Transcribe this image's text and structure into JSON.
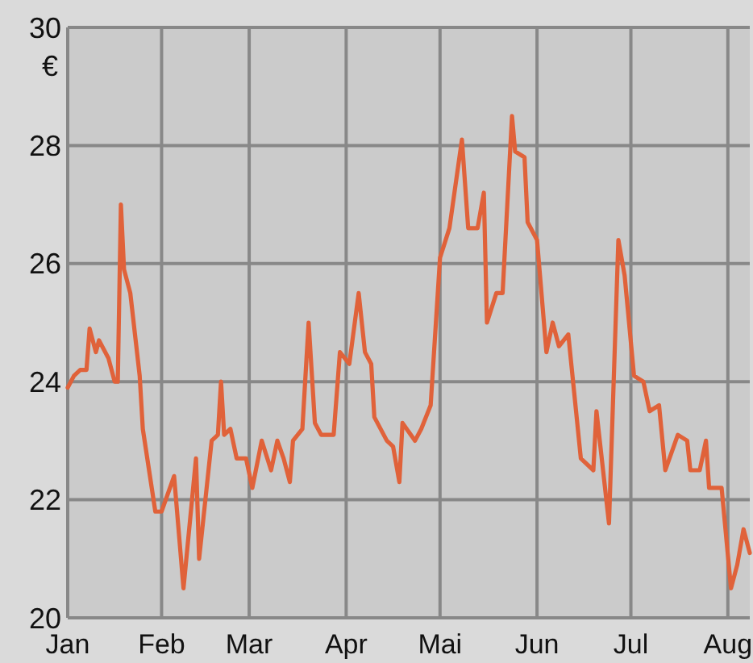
{
  "chart_data": {
    "type": "line",
    "ylabel": "€",
    "ylim": [
      20,
      30
    ],
    "yticks": [
      20,
      22,
      24,
      26,
      28,
      30
    ],
    "xlim": [
      "--01-02",
      "--08-08"
    ],
    "xticks": [
      {
        "value": "--01-02",
        "label": "Jan"
      },
      {
        "value": "--02-01",
        "label": "Feb"
      },
      {
        "value": "--03-01",
        "label": "Mar"
      },
      {
        "value": "--04-01",
        "label": "Apr"
      },
      {
        "value": "--05-01",
        "label": "Mai"
      },
      {
        "value": "--06-01",
        "label": "Jun"
      },
      {
        "value": "--07-01",
        "label": "Jul"
      },
      {
        "value": "--08-01",
        "label": "Aug"
      }
    ],
    "grid": true,
    "line_style": "solid",
    "marker": "none",
    "x": [
      "--01-02",
      "--01-04",
      "--01-06",
      "--01-08",
      "--01-09",
      "--01-11",
      "--01-12",
      "--01-15",
      "--01-17",
      "--01-18",
      "--01-19",
      "--01-20",
      "--01-22",
      "--01-25",
      "--01-26",
      "--01-30",
      "--02-01",
      "--02-05",
      "--02-08",
      "--02-12",
      "--02-13",
      "--02-17",
      "--02-19",
      "--02-20",
      "--02-21",
      "--02-23",
      "--02-25",
      "--02-28",
      "--03-02",
      "--03-05",
      "--03-08",
      "--03-10",
      "--03-12",
      "--03-14",
      "--03-15",
      "--03-18",
      "--03-20",
      "--03-22",
      "--03-24",
      "--03-28",
      "--03-30",
      "--04-02",
      "--04-05",
      "--04-07",
      "--04-09",
      "--04-10",
      "--04-14",
      "--04-16",
      "--04-18",
      "--04-19",
      "--04-23",
      "--04-25",
      "--04-28",
      "--05-01",
      "--05-04",
      "--05-08",
      "--05-10",
      "--05-13",
      "--05-15",
      "--05-16",
      "--05-19",
      "--05-21",
      "--05-24",
      "--05-25",
      "--05-28",
      "--05-29",
      "--06-01",
      "--06-04",
      "--06-06",
      "--06-08",
      "--06-11",
      "--06-15",
      "--06-19",
      "--06-20",
      "--06-24",
      "--06-27",
      "--06-29",
      "--07-02",
      "--07-05",
      "--07-07",
      "--07-10",
      "--07-12",
      "--07-16",
      "--07-19",
      "--07-20",
      "--07-23",
      "--07-25",
      "--07-26",
      "--07-30",
      "--08-02",
      "--08-04",
      "--08-06",
      "--08-08"
    ],
    "series": [
      {
        "color": "#e0623a",
        "values": [
          23.9,
          24.1,
          24.2,
          24.2,
          24.9,
          24.5,
          24.7,
          24.4,
          24.0,
          24.0,
          27.0,
          25.9,
          25.5,
          24.1,
          23.2,
          21.8,
          21.8,
          22.4,
          20.5,
          22.7,
          21.0,
          23.0,
          23.1,
          24.0,
          23.1,
          23.2,
          22.7,
          22.7,
          22.2,
          23.0,
          22.5,
          23.0,
          22.7,
          22.3,
          23.0,
          23.2,
          25.0,
          23.3,
          23.1,
          23.1,
          24.5,
          24.3,
          25.5,
          24.5,
          24.3,
          23.4,
          23.0,
          22.9,
          22.3,
          23.3,
          23.0,
          23.2,
          23.6,
          26.1,
          26.6,
          28.1,
          26.6,
          26.6,
          27.2,
          25.0,
          25.5,
          25.5,
          28.5,
          27.9,
          27.8,
          26.7,
          26.4,
          24.5,
          25.0,
          24.6,
          24.8,
          22.7,
          22.5,
          23.5,
          21.6,
          26.4,
          25.8,
          24.1,
          24.0,
          23.5,
          23.6,
          22.5,
          23.1,
          23.0,
          22.5,
          22.5,
          23.0,
          22.2,
          22.2,
          20.5,
          20.9,
          21.5,
          21.1
        ]
      }
    ]
  }
}
